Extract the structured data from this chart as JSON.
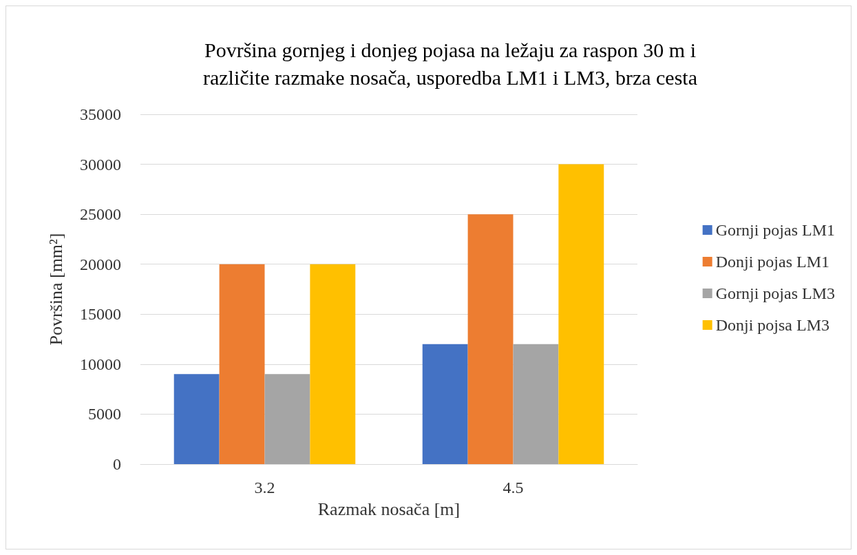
{
  "chart_data": {
    "type": "bar",
    "title": "Površina gornjeg i donjeg pojasa na ležaju za raspon 30 m i\nrazličite razmake nosača, usporedba LM1 i LM3, brza cesta",
    "xlabel": "Razmak nosača [m]",
    "ylabel": "Površina [mm²]",
    "categories": [
      "3.2",
      "4.5"
    ],
    "series": [
      {
        "name": "Gornji pojas LM1",
        "color": "#4472c4",
        "values": [
          9000,
          12000
        ]
      },
      {
        "name": "Donji pojas LM1",
        "color": "#ed7d31",
        "values": [
          20000,
          25000
        ]
      },
      {
        "name": "Gornji pojas LM3",
        "color": "#a5a5a5",
        "values": [
          9000,
          12000
        ]
      },
      {
        "name": "Donji pojsa LM3",
        "color": "#ffc000",
        "values": [
          20000,
          30000
        ]
      }
    ],
    "ylim": [
      0,
      35000
    ],
    "yticks": [
      0,
      5000,
      10000,
      15000,
      20000,
      25000,
      30000,
      35000
    ],
    "grid": "y",
    "legend": "right"
  }
}
